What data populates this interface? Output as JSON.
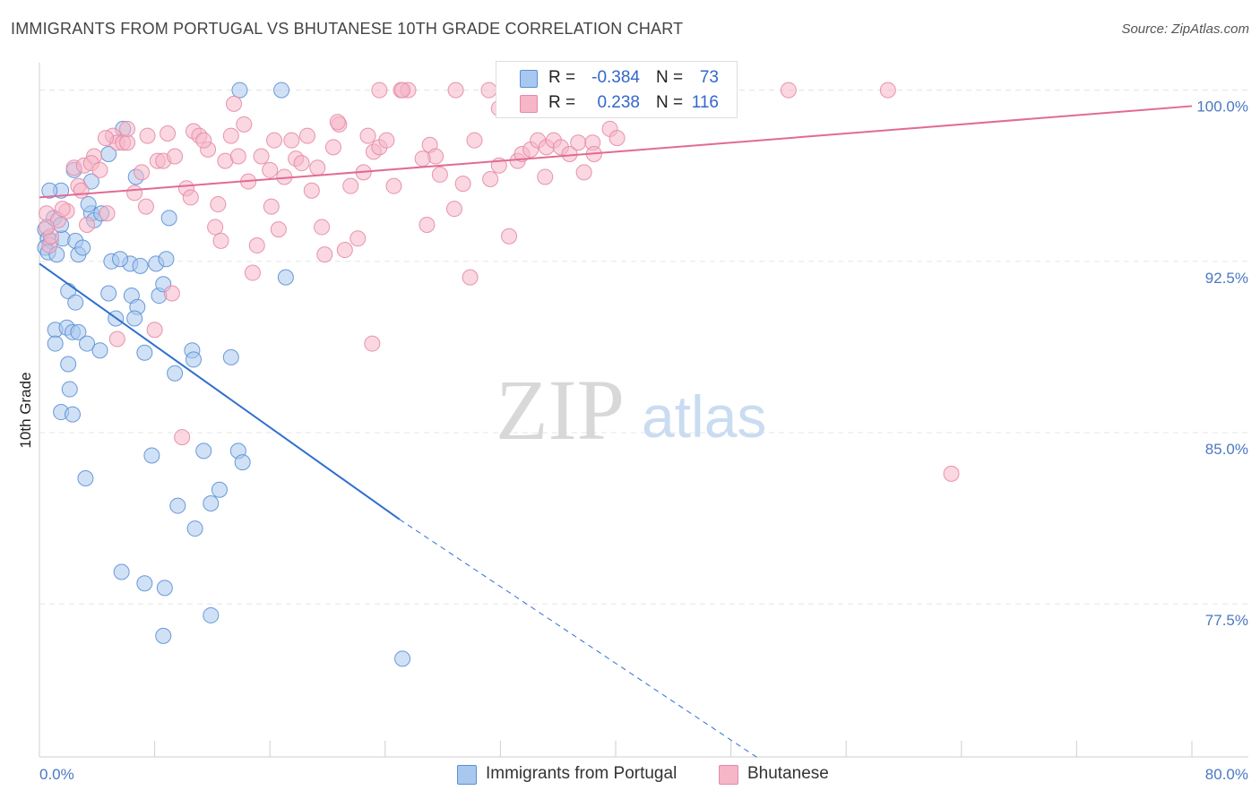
{
  "header": {
    "title": "IMMIGRANTS FROM PORTUGAL VS BHUTANESE 10TH GRADE CORRELATION CHART",
    "source": "Source: ZipAtlas.com"
  },
  "watermark": {
    "zip": "ZIP",
    "atlas": "atlas"
  },
  "legend": {
    "series1": {
      "r_label": "R =",
      "r_value": "-0.384",
      "n_label": "N =",
      "n_value": "73"
    },
    "series2": {
      "r_label": "R =",
      "r_value": "0.238",
      "n_label": "N =",
      "n_value": "116"
    }
  },
  "bottom_legend": {
    "series1": "Immigrants from Portugal",
    "series2": "Bhutanese"
  },
  "colors": {
    "series1_fill": "#a9c8ef",
    "series1_stroke": "#5b8fd6",
    "series1_line": "#2f6fcf",
    "series2_fill": "#f6b6c8",
    "series2_stroke": "#e48aa6",
    "series2_line": "#e26a93",
    "tick_text": "#4a78c2",
    "grid": "#e6e6e6"
  },
  "chart_data": {
    "type": "scatter",
    "title": "IMMIGRANTS FROM PORTUGAL VS BHUTANESE 10TH GRADE CORRELATION CHART",
    "xlabel": "",
    "ylabel": "10th Grade",
    "xlim": [
      0,
      80
    ],
    "ylim": [
      70.8,
      101.2
    ],
    "x_tick_labels": [
      "0.0%",
      "80.0%"
    ],
    "y_ticks": [
      77.5,
      85.0,
      92.5,
      100.0
    ],
    "y_tick_labels": [
      "77.5%",
      "85.0%",
      "92.5%",
      "100.0%"
    ],
    "grid": "horizontal dashed",
    "legend_position": "top-center",
    "series": [
      {
        "name": "Immigrants from Portugal",
        "r": -0.384,
        "n": 73,
        "trend": {
          "x": [
            0,
            25,
            50
          ],
          "y": [
            92.4,
            81.2,
            70.7
          ],
          "dashed_from_x": 25
        },
        "points": [
          [
            0.4,
            93.9
          ],
          [
            0.6,
            93.5
          ],
          [
            0.4,
            93.1
          ],
          [
            0.8,
            93.4
          ],
          [
            0.6,
            92.9
          ],
          [
            1.2,
            92.8
          ],
          [
            1.0,
            94.4
          ],
          [
            1.5,
            95.6
          ],
          [
            1.6,
            93.5
          ],
          [
            2.5,
            93.4
          ],
          [
            2.7,
            92.8
          ],
          [
            2.0,
            91.2
          ],
          [
            2.5,
            90.7
          ],
          [
            3.0,
            93.1
          ],
          [
            3.6,
            94.6
          ],
          [
            3.8,
            94.3
          ],
          [
            4.3,
            94.6
          ],
          [
            3.6,
            96.0
          ],
          [
            4.8,
            97.2
          ],
          [
            5.8,
            98.3
          ],
          [
            6.7,
            96.2
          ],
          [
            4.8,
            91.1
          ],
          [
            5.0,
            92.5
          ],
          [
            6.3,
            92.4
          ],
          [
            6.4,
            91.0
          ],
          [
            7.0,
            92.3
          ],
          [
            8.1,
            92.4
          ],
          [
            8.8,
            92.6
          ],
          [
            8.3,
            91.0
          ],
          [
            8.6,
            91.5
          ],
          [
            6.8,
            90.5
          ],
          [
            5.3,
            90.0
          ],
          [
            6.6,
            90.0
          ],
          [
            1.1,
            89.5
          ],
          [
            1.9,
            89.6
          ],
          [
            2.3,
            89.4
          ],
          [
            2.7,
            89.4
          ],
          [
            1.1,
            88.9
          ],
          [
            3.3,
            88.9
          ],
          [
            4.2,
            88.6
          ],
          [
            7.3,
            88.5
          ],
          [
            10.6,
            88.6
          ],
          [
            13.3,
            88.3
          ],
          [
            10.7,
            88.2
          ],
          [
            2.0,
            88.0
          ],
          [
            9.4,
            87.6
          ],
          [
            2.1,
            86.9
          ],
          [
            1.5,
            85.9
          ],
          [
            2.3,
            85.8
          ],
          [
            7.8,
            84.0
          ],
          [
            11.4,
            84.2
          ],
          [
            13.8,
            84.2
          ],
          [
            14.1,
            83.7
          ],
          [
            3.2,
            83.0
          ],
          [
            12.5,
            82.5
          ],
          [
            9.6,
            81.8
          ],
          [
            11.9,
            81.9
          ],
          [
            10.8,
            80.8
          ],
          [
            5.7,
            78.9
          ],
          [
            7.3,
            78.4
          ],
          [
            8.7,
            78.2
          ],
          [
            11.9,
            77.0
          ],
          [
            8.6,
            76.1
          ],
          [
            25.2,
            75.1
          ],
          [
            13.9,
            100.0
          ],
          [
            16.8,
            100.0
          ],
          [
            17.1,
            91.8
          ],
          [
            0.7,
            95.6
          ],
          [
            1.5,
            94.1
          ],
          [
            3.4,
            95.0
          ],
          [
            2.4,
            96.5
          ],
          [
            9.0,
            94.4
          ],
          [
            5.6,
            92.6
          ]
        ]
      },
      {
        "name": "Bhutanese",
        "r": 0.238,
        "n": 116,
        "trend": {
          "x": [
            0,
            80
          ],
          "y": [
            95.3,
            99.3
          ]
        },
        "points": [
          [
            0.5,
            94.6
          ],
          [
            0.7,
            93.2
          ],
          [
            0.8,
            93.6
          ],
          [
            1.3,
            94.3
          ],
          [
            1.9,
            94.7
          ],
          [
            2.4,
            96.6
          ],
          [
            2.7,
            95.8
          ],
          [
            3.1,
            96.7
          ],
          [
            3.8,
            97.1
          ],
          [
            3.6,
            96.8
          ],
          [
            4.7,
            94.6
          ],
          [
            4.2,
            96.5
          ],
          [
            5.1,
            98.0
          ],
          [
            5.4,
            97.7
          ],
          [
            5.8,
            97.7
          ],
          [
            6.1,
            97.7
          ],
          [
            6.6,
            95.5
          ],
          [
            7.1,
            96.4
          ],
          [
            7.4,
            94.9
          ],
          [
            7.5,
            98.0
          ],
          [
            8.2,
            96.9
          ],
          [
            8.6,
            96.9
          ],
          [
            8.9,
            98.1
          ],
          [
            9.4,
            97.1
          ],
          [
            10.2,
            95.7
          ],
          [
            10.5,
            95.3
          ],
          [
            10.7,
            98.2
          ],
          [
            11.1,
            98.0
          ],
          [
            11.7,
            97.4
          ],
          [
            12.2,
            94.0
          ],
          [
            12.4,
            95.0
          ],
          [
            12.6,
            93.4
          ],
          [
            12.9,
            96.9
          ],
          [
            13.3,
            98.0
          ],
          [
            13.8,
            97.1
          ],
          [
            14.2,
            98.5
          ],
          [
            14.5,
            96.0
          ],
          [
            14.8,
            92.0
          ],
          [
            15.1,
            93.2
          ],
          [
            15.4,
            97.1
          ],
          [
            16.0,
            96.5
          ],
          [
            16.3,
            97.8
          ],
          [
            16.1,
            94.9
          ],
          [
            16.6,
            93.9
          ],
          [
            17.0,
            96.2
          ],
          [
            17.5,
            97.8
          ],
          [
            17.8,
            97.0
          ],
          [
            18.2,
            96.8
          ],
          [
            18.6,
            98.0
          ],
          [
            18.9,
            95.6
          ],
          [
            19.3,
            96.6
          ],
          [
            19.6,
            94.0
          ],
          [
            19.8,
            92.8
          ],
          [
            20.4,
            97.5
          ],
          [
            20.8,
            98.5
          ],
          [
            21.2,
            93.0
          ],
          [
            21.6,
            95.8
          ],
          [
            22.1,
            93.5
          ],
          [
            22.5,
            96.4
          ],
          [
            22.8,
            98.0
          ],
          [
            23.2,
            97.3
          ],
          [
            23.6,
            97.5
          ],
          [
            24.1,
            97.8
          ],
          [
            24.6,
            95.8
          ],
          [
            25.1,
            100.0
          ],
          [
            25.6,
            100.0
          ],
          [
            25.2,
            100.0
          ],
          [
            26.9,
            94.1
          ],
          [
            27.1,
            97.6
          ],
          [
            27.5,
            97.1
          ],
          [
            27.8,
            96.3
          ],
          [
            28.8,
            94.8
          ],
          [
            29.4,
            95.9
          ],
          [
            29.9,
            91.8
          ],
          [
            30.2,
            97.8
          ],
          [
            31.3,
            96.1
          ],
          [
            31.9,
            96.7
          ],
          [
            32.6,
            93.6
          ],
          [
            33.2,
            96.9
          ],
          [
            33.5,
            97.2
          ],
          [
            34.1,
            97.4
          ],
          [
            34.6,
            97.8
          ],
          [
            35.1,
            96.2
          ],
          [
            35.2,
            97.5
          ],
          [
            35.7,
            97.8
          ],
          [
            36.2,
            97.5
          ],
          [
            36.8,
            97.2
          ],
          [
            37.4,
            97.7
          ],
          [
            37.8,
            96.4
          ],
          [
            38.4,
            97.7
          ],
          [
            38.5,
            97.2
          ],
          [
            39.6,
            98.3
          ],
          [
            40.1,
            97.9
          ],
          [
            23.6,
            100.0
          ],
          [
            28.9,
            100.0
          ],
          [
            31.2,
            100.0
          ],
          [
            35.8,
            100.0
          ],
          [
            39.8,
            99.8
          ],
          [
            44.4,
            100.0
          ],
          [
            52.0,
            100.0
          ],
          [
            58.9,
            100.0
          ],
          [
            63.3,
            83.2
          ],
          [
            5.4,
            89.1
          ],
          [
            8.0,
            89.5
          ],
          [
            9.2,
            91.1
          ],
          [
            9.9,
            84.8
          ],
          [
            23.1,
            88.9
          ],
          [
            0.5,
            94.0
          ],
          [
            1.6,
            94.8
          ],
          [
            2.9,
            95.6
          ],
          [
            3.3,
            94.1
          ],
          [
            4.6,
            97.9
          ],
          [
            6.1,
            98.3
          ],
          [
            11.4,
            97.8
          ],
          [
            13.5,
            99.4
          ],
          [
            20.7,
            98.6
          ],
          [
            26.6,
            97.0
          ],
          [
            31.9,
            99.2
          ]
        ]
      }
    ]
  }
}
